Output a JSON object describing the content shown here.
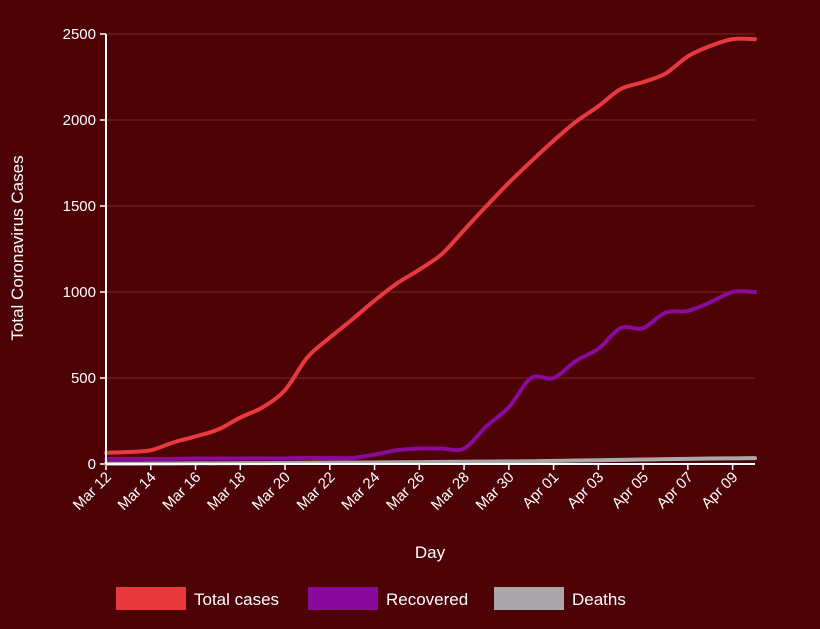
{
  "chart_data": {
    "type": "line",
    "title": "",
    "xlabel": "Day",
    "ylabel": "Total Coronavirus Cases",
    "ylim": [
      0,
      2500
    ],
    "yticks": [
      0,
      500,
      1000,
      1500,
      2000,
      2500
    ],
    "grid": true,
    "legend_position": "bottom",
    "x": [
      "Mar 12",
      "Mar 13",
      "Mar 14",
      "Mar 15",
      "Mar 16",
      "Mar 17",
      "Mar 18",
      "Mar 19",
      "Mar 20",
      "Mar 21",
      "Mar 22",
      "Mar 23",
      "Mar 24",
      "Mar 25",
      "Mar 26",
      "Mar 27",
      "Mar 28",
      "Mar 29",
      "Mar 30",
      "Mar 31",
      "Apr 01",
      "Apr 02",
      "Apr 03",
      "Apr 04",
      "Apr 05",
      "Apr 06",
      "Apr 07",
      "Apr 08",
      "Apr 09",
      "Apr 10"
    ],
    "x_tick_labels": [
      "Mar 12",
      "Mar 14",
      "Mar 16",
      "Mar 18",
      "Mar 20",
      "Mar 22",
      "Mar 24",
      "Mar 26",
      "Mar 28",
      "Mar 30",
      "Apr 01",
      "Apr 03",
      "Apr 05",
      "Apr 07",
      "Apr 09"
    ],
    "series": [
      {
        "name": "Total cases",
        "color": "#e8393f",
        "values": [
          65,
          70,
          80,
          125,
          160,
          200,
          270,
          330,
          430,
          620,
          735,
          840,
          950,
          1050,
          1130,
          1220,
          1360,
          1500,
          1635,
          1760,
          1880,
          1990,
          2080,
          2180,
          2220,
          2270,
          2370,
          2430,
          2470,
          2470
        ]
      },
      {
        "name": "Recovered",
        "color": "#8a0a9e",
        "values": [
          30,
          30,
          30,
          30,
          32,
          32,
          32,
          33,
          33,
          35,
          35,
          35,
          55,
          80,
          90,
          90,
          90,
          220,
          330,
          500,
          500,
          600,
          670,
          790,
          790,
          880,
          890,
          940,
          1000,
          1000
        ]
      },
      {
        "name": "Deaths",
        "color": "#aba6aa",
        "values": [
          2,
          2,
          3,
          3,
          4,
          4,
          5,
          5,
          6,
          7,
          8,
          8,
          9,
          10,
          11,
          12,
          13,
          14,
          15,
          16,
          18,
          20,
          22,
          24,
          26,
          28,
          30,
          32,
          33,
          34
        ]
      }
    ]
  }
}
